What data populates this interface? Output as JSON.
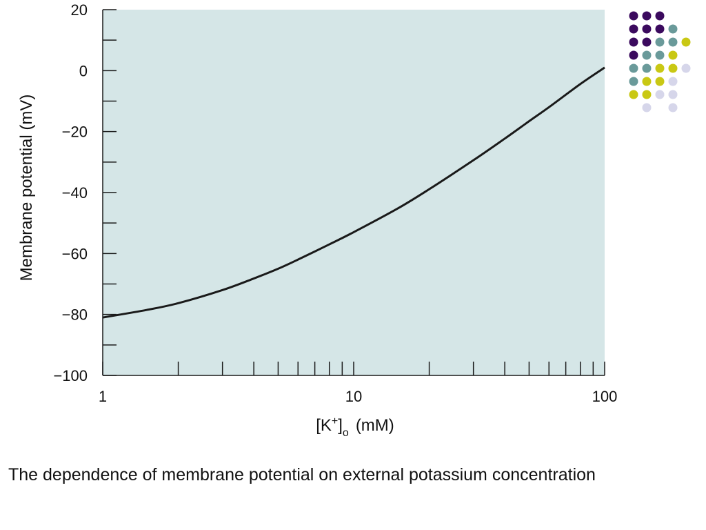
{
  "chart_data": {
    "type": "line",
    "xscale": "log",
    "xlim": [
      1,
      100
    ],
    "ylim": [
      -100,
      20
    ],
    "xticks_labeled": [
      "1",
      "10",
      "100"
    ],
    "xtick_values": [
      1,
      10,
      100
    ],
    "yticks_labeled": [
      "20",
      "0",
      "−20",
      "−40",
      "−60",
      "−80",
      "−100"
    ],
    "ytick_values": [
      20,
      0,
      -20,
      -40,
      -60,
      -80,
      -100
    ],
    "ylabel": "Membrane potential (mV)",
    "xlabel": {
      "prefix": "[K",
      "superscript": "+",
      "close": "]",
      "subscript": "o",
      "unit": "(mM)"
    },
    "grid": false,
    "background_color": "#d5e6e7",
    "line_color": "#1a1a1a",
    "series": [
      {
        "x": [
          1,
          1.5,
          2,
          3,
          4,
          5,
          6,
          8,
          10,
          15,
          20,
          30,
          40,
          50,
          60,
          80,
          100
        ],
        "values": [
          -81,
          -78.5,
          -76.3,
          -72,
          -68.2,
          -65,
          -62,
          -57,
          -53,
          -45.2,
          -38.9,
          -29.4,
          -22.3,
          -16.6,
          -12,
          -4.4,
          1
        ]
      }
    ]
  },
  "caption": "The dependence of membrane potential on external potassium concentration",
  "decoration": {
    "dot_colors": {
      "purple": "#3b0a5e",
      "teal": "#6a9a9a",
      "yellow": "#c9c814",
      "lavender": "#d6d6ea"
    },
    "dot_rows": [
      [
        "purple",
        "purple",
        "purple",
        "",
        "",
        ""
      ],
      [
        "purple",
        "purple",
        "purple",
        "teal",
        "",
        ""
      ],
      [
        "purple",
        "purple",
        "teal",
        "teal",
        "yellow",
        ""
      ],
      [
        "purple",
        "teal",
        "teal",
        "yellow",
        "",
        ""
      ],
      [
        "teal",
        "teal",
        "yellow",
        "yellow",
        "lavender",
        ""
      ],
      [
        "teal",
        "yellow",
        "yellow",
        "lavender",
        "",
        ""
      ],
      [
        "yellow",
        "yellow",
        "lavender",
        "lavender",
        "",
        ""
      ],
      [
        "",
        "lavender",
        "",
        "lavender",
        "",
        ""
      ]
    ]
  }
}
